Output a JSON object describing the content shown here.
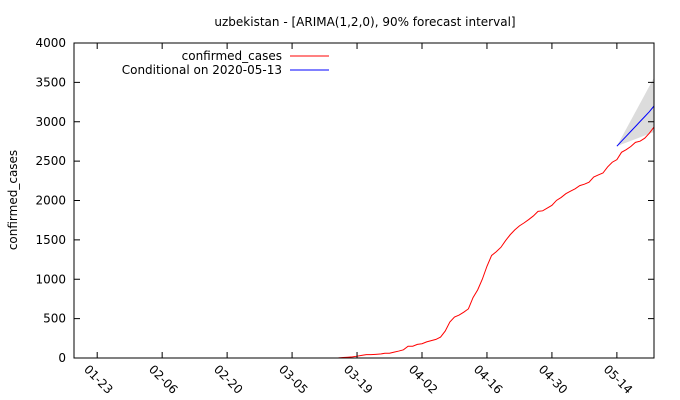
{
  "chart_data": {
    "type": "line",
    "title": "uzbekistan -  [ARIMA(1,2,0), 90% forecast interval]",
    "xlabel": "",
    "ylabel": "confirmed_cases",
    "ylim": [
      0,
      4000
    ],
    "yticks": [
      0,
      500,
      1000,
      1500,
      2000,
      2500,
      3000,
      3500,
      4000
    ],
    "xlim": [
      "2020-01-18",
      "2020-05-22"
    ],
    "xticks": [
      {
        "date": "2020-01-23",
        "label": "01-23"
      },
      {
        "date": "2020-02-06",
        "label": "02-06"
      },
      {
        "date": "2020-02-20",
        "label": "02-20"
      },
      {
        "date": "2020-03-05",
        "label": "03-05"
      },
      {
        "date": "2020-03-19",
        "label": "03-19"
      },
      {
        "date": "2020-04-02",
        "label": "04-02"
      },
      {
        "date": "2020-04-16",
        "label": "04-16"
      },
      {
        "date": "2020-04-30",
        "label": "04-30"
      },
      {
        "date": "2020-05-14",
        "label": "05-14"
      }
    ],
    "grid": false,
    "legend_position": "top-center",
    "series": [
      {
        "name": "confirmed_cases",
        "color": "#ff0000",
        "points": [
          [
            "2020-03-15",
            1
          ],
          [
            "2020-03-16",
            6
          ],
          [
            "2020-03-17",
            10
          ],
          [
            "2020-03-18",
            15
          ],
          [
            "2020-03-19",
            23
          ],
          [
            "2020-03-20",
            33
          ],
          [
            "2020-03-21",
            43
          ],
          [
            "2020-03-22",
            43
          ],
          [
            "2020-03-23",
            46
          ],
          [
            "2020-03-24",
            50
          ],
          [
            "2020-03-25",
            60
          ],
          [
            "2020-03-26",
            60
          ],
          [
            "2020-03-27",
            75
          ],
          [
            "2020-03-28",
            88
          ],
          [
            "2020-03-29",
            104
          ],
          [
            "2020-03-30",
            149
          ],
          [
            "2020-03-31",
            149
          ],
          [
            "2020-04-01",
            173
          ],
          [
            "2020-04-02",
            181
          ],
          [
            "2020-04-03",
            205
          ],
          [
            "2020-04-04",
            221
          ],
          [
            "2020-04-05",
            236
          ],
          [
            "2020-04-06",
            266
          ],
          [
            "2020-04-07",
            342
          ],
          [
            "2020-04-08",
            457
          ],
          [
            "2020-04-09",
            520
          ],
          [
            "2020-04-10",
            545
          ],
          [
            "2020-04-11",
            582
          ],
          [
            "2020-04-12",
            624
          ],
          [
            "2020-04-13",
            767
          ],
          [
            "2020-04-14",
            865
          ],
          [
            "2020-04-15",
            1000
          ],
          [
            "2020-04-16",
            1165
          ],
          [
            "2020-04-17",
            1302
          ],
          [
            "2020-04-18",
            1349
          ],
          [
            "2020-04-19",
            1405
          ],
          [
            "2020-04-20",
            1490
          ],
          [
            "2020-04-21",
            1565
          ],
          [
            "2020-04-22",
            1627
          ],
          [
            "2020-04-23",
            1678
          ],
          [
            "2020-04-24",
            1716
          ],
          [
            "2020-04-25",
            1758
          ],
          [
            "2020-04-26",
            1804
          ],
          [
            "2020-04-27",
            1862
          ],
          [
            "2020-04-28",
            1869
          ],
          [
            "2020-04-29",
            1904
          ],
          [
            "2020-04-30",
            1939
          ],
          [
            "2020-05-01",
            2002
          ],
          [
            "2020-05-02",
            2039
          ],
          [
            "2020-05-03",
            2086
          ],
          [
            "2020-05-04",
            2118
          ],
          [
            "2020-05-05",
            2149
          ],
          [
            "2020-05-06",
            2189
          ],
          [
            "2020-05-07",
            2207
          ],
          [
            "2020-05-08",
            2233
          ],
          [
            "2020-05-09",
            2298
          ],
          [
            "2020-05-10",
            2325
          ],
          [
            "2020-05-11",
            2349
          ],
          [
            "2020-05-12",
            2426
          ],
          [
            "2020-05-13",
            2486
          ],
          [
            "2020-05-14",
            2519
          ],
          [
            "2020-05-15",
            2612
          ],
          [
            "2020-05-16",
            2645
          ],
          [
            "2020-05-17",
            2686
          ],
          [
            "2020-05-18",
            2738
          ],
          [
            "2020-05-19",
            2753
          ],
          [
            "2020-05-20",
            2791
          ],
          [
            "2020-05-21",
            2855
          ],
          [
            "2020-05-22",
            2933
          ]
        ]
      },
      {
        "name": "Conditional on 2020-05-13",
        "color": "#0000ff",
        "points": [
          [
            "2020-05-14",
            2690
          ],
          [
            "2020-05-15",
            2753
          ],
          [
            "2020-05-16",
            2815
          ],
          [
            "2020-05-17",
            2878
          ],
          [
            "2020-05-18",
            2940
          ],
          [
            "2020-05-19",
            3003
          ],
          [
            "2020-05-20",
            3065
          ],
          [
            "2020-05-21",
            3128
          ],
          [
            "2020-05-22",
            3200
          ]
        ]
      }
    ],
    "forecast_interval": {
      "level": "90%",
      "color": "#dcdcdc",
      "x": [
        "2020-05-14",
        "2020-05-22"
      ],
      "lower": [
        2690,
        2870
      ],
      "upper": [
        2690,
        3560
      ]
    }
  }
}
